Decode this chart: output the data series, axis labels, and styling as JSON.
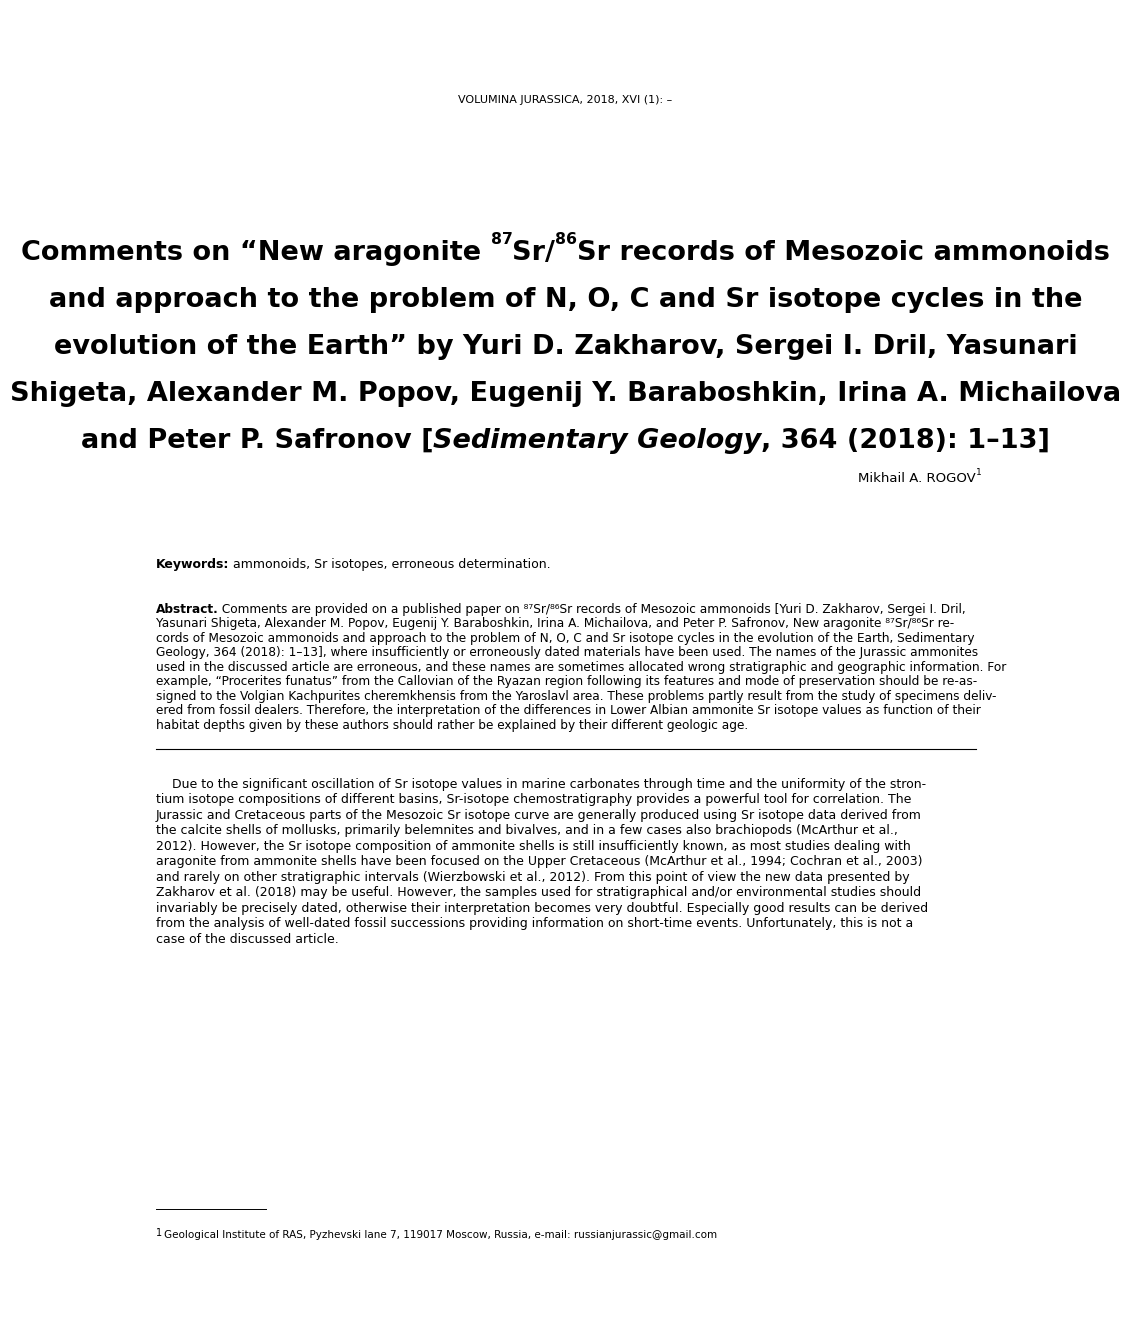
{
  "background_color": "#ffffff",
  "journal_header": "VOLUMINA JURASSICA, 2018, XVI (1): –",
  "title_lines": [
    "Comments on “New aragonite $^{87}$Sr/$^{86}$Sr records of Mesozoic ammonoids",
    "and approach to the problem of N, O, C and Sr isotope cycles in the",
    "evolution of the Earth” by Yuri D. Zakharov, Sergei I. Dril, Yasunari",
    "Shigeta, Alexander M. Popov, Eugenij Y. Baraboshkin, Irina A. Michailova"
  ],
  "title_line5_pre": "and Peter P. Safronov [",
  "title_line5_italic": "Sedimentary Geology",
  "title_line5_post": ", 364 (2018): 1–13]",
  "author_main": "Mikhail A. ROGOV",
  "author_sup": "1",
  "keywords_bold": "Keywords:",
  "keywords_normal": " ammonoids, Sr isotopes, erroneous determination.",
  "abstract_bold": "Abstract.",
  "abstract_lines": [
    " Comments are provided on a published paper on ⁸⁷Sr/⁸⁶Sr records of Mesozoic ammonoids [Yuri D. Zakharov, Sergei I. Dril,",
    "Yasunari Shigeta, Alexander M. Popov, Eugenij Y. Baraboshkin, Irina A. Michailova, and Peter P. Safronov, New aragonite ⁸⁷Sr/⁸⁶Sr re-",
    "cords of Mesozoic ammonoids and approach to the problem of N, O, C and Sr isotope cycles in the evolution of the Earth, Sedimentary",
    "Geology, 364 (2018): 1–13], where insufficiently or erroneously dated materials have been used. The names of the Jurassic ammonites",
    "used in the discussed article are erroneous, and these names are sometimes allocated wrong stratigraphic and geographic information. For",
    "example, “Procerites funatus” from the Callovian of the Ryazan region following its features and mode of preservation should be re-as-",
    "signed to the Volgian Kachpurites cheremkhensis from the Yaroslavl area. These problems partly result from the study of specimens deliv-",
    "ered from fossil dealers. Therefore, the interpretation of the differences in Lower Albian ammonite Sr isotope values as function of their",
    "habitat depths given by these authors should rather be explained by their different geologic age."
  ],
  "body_indent": "    Due to the significant oscillation of Sr isotope values in marine carbonates through time and the uniformity of the stron-",
  "body_lines": [
    "tium isotope compositions of different basins, Sr-isotope chemostratigraphy provides a powerful tool for correlation. The",
    "Jurassic and Cretaceous parts of the Mesozoic Sr isotope curve are generally produced using Sr isotope data derived from",
    "the calcite shells of mollusks, primarily belemnites and bivalves, and in a few cases also brachiopods (McArthur et al.,",
    "2012). However, the Sr isotope composition of ammonite shells is still insufficiently known, as most studies dealing with",
    "aragonite from ammonite shells have been focused on the Upper Cretaceous (McArthur et al., 1994; Cochran et al., 2003)",
    "and rarely on other stratigraphic intervals (Wierzbowski et al., 2012). From this point of view the new data presented by",
    "Zakharov et al. (2018) may be useful. However, the samples used for stratigraphical and/or environmental studies should",
    "invariably be precisely dated, otherwise their interpretation becomes very doubtful. Especially good results can be derived",
    "from the analysis of well-dated fossil successions providing information on short-time events. Unfortunately, this is not a",
    "case of the discussed article."
  ],
  "footnote_text": "Geological Institute of RAS, Pyzhevski lane 7, 119017 Moscow, Russia, e-mail: russianjurassic@gmail.com",
  "font_color": "#000000"
}
